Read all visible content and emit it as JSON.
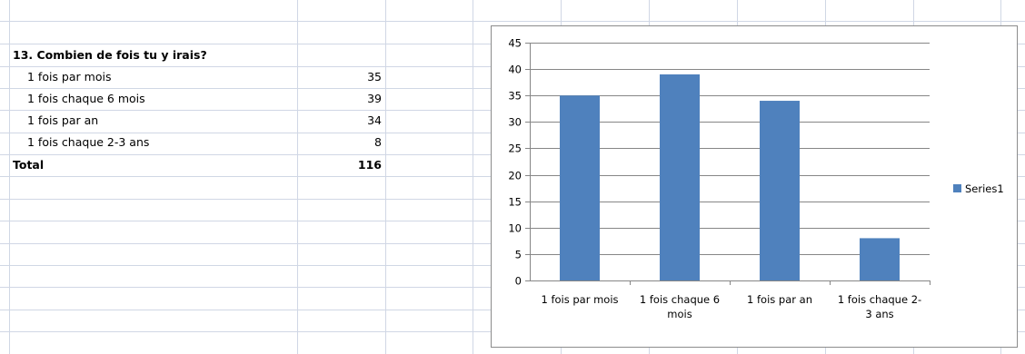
{
  "sheet": {
    "table": {
      "title": "13. Combien de fois tu y irais?",
      "rows": [
        {
          "label": "1 fois par mois",
          "value": "35"
        },
        {
          "label": "1 fois chaque 6 mois",
          "value": "39"
        },
        {
          "label": "1 fois par an",
          "value": "34"
        },
        {
          "label": "1 fois chaque 2-3 ans",
          "value": "8"
        }
      ],
      "total_label": "Total",
      "total_value": "116"
    }
  },
  "chart_data": {
    "type": "bar",
    "categories": [
      "1 fois par mois",
      "1 fois chaque 6 mois",
      "1 fois par an",
      "1 fois chaque 2-3 ans"
    ],
    "category_lines": [
      [
        "1 fois par mois"
      ],
      [
        "1 fois chaque 6",
        "mois"
      ],
      [
        "1 fois par an"
      ],
      [
        "1 fois chaque 2-",
        "3 ans"
      ]
    ],
    "series": [
      {
        "name": "Series1",
        "values": [
          35,
          39,
          34,
          8
        ],
        "color": "#4f81bd"
      }
    ],
    "ylim": [
      0,
      45
    ],
    "yticks": [
      "0",
      "5",
      "10",
      "15",
      "20",
      "25",
      "30",
      "35",
      "40",
      "45"
    ],
    "grid": true,
    "legend": "right"
  }
}
